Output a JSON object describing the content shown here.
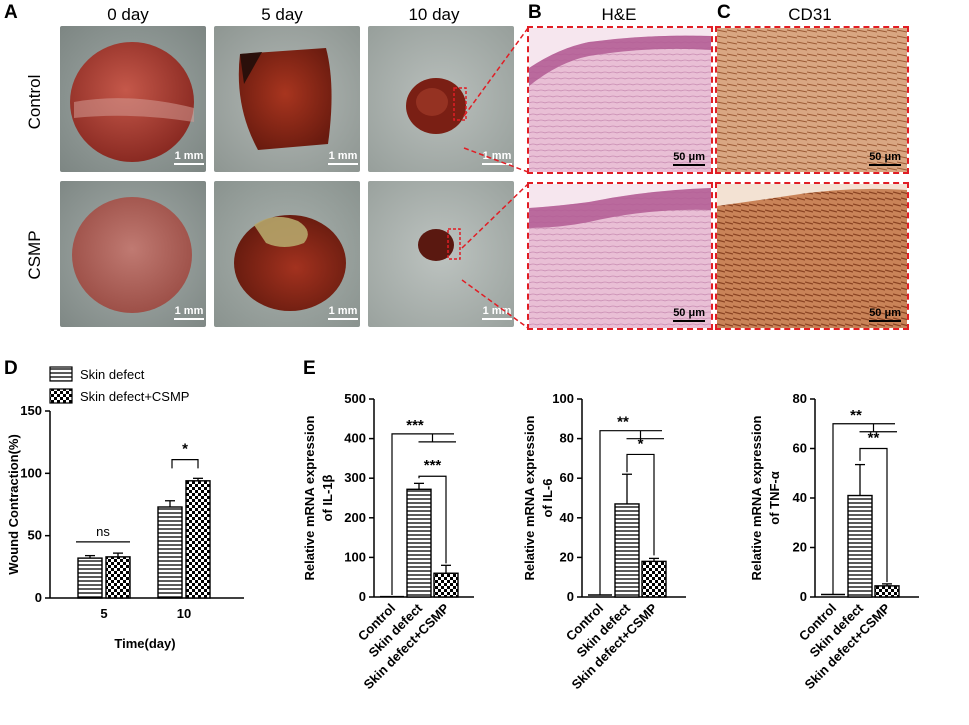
{
  "panels": {
    "a": "A",
    "b": "B",
    "c": "C",
    "d": "D",
    "e": "E"
  },
  "photo_grid": {
    "columns": [
      "0 day",
      "5 day",
      "10 day"
    ],
    "rows": [
      "Control",
      "CSMP"
    ],
    "scale_label": "1 mm"
  },
  "micro": {
    "he_title": "H&E",
    "cd31_title": "CD31",
    "scale_label": "50 μm"
  },
  "colors": {
    "skin": "#8f9894",
    "wound_dark": "#6b1d10",
    "wound_red": "#a8362a",
    "he_pink": "#e7b6cf",
    "cd31_brown": "#c98b62",
    "dash_red": "#e11d24"
  },
  "chart_data": [
    {
      "type": "bar",
      "panel": "D",
      "categories": [
        "5",
        "10"
      ],
      "series": [
        {
          "name": "Skin defect",
          "values": [
            32,
            73
          ],
          "errors": [
            2,
            5
          ],
          "pattern": "horizontal-lines"
        },
        {
          "name": "Skin defect+CSMP",
          "values": [
            33,
            94
          ],
          "errors": [
            3,
            2
          ],
          "pattern": "checker"
        }
      ],
      "ylabel": "Wound Contraction(%)",
      "xlabel": "Time(day)",
      "ylim": [
        0,
        150
      ],
      "yticks": [
        "0",
        "50",
        "100",
        "150"
      ],
      "significance": [
        {
          "category": "5",
          "label": "ns"
        },
        {
          "category": "10",
          "label": "*"
        }
      ],
      "legend_position": "top"
    },
    {
      "type": "bar",
      "panel": "E",
      "categories": [
        "Control",
        "Skin defect",
        "Skin defect+CSMP"
      ],
      "values": [
        1,
        272,
        60
      ],
      "errors": [
        0,
        15,
        20
      ],
      "ylabel_lines": [
        "Relative mRNA expression",
        "of IL-1β"
      ],
      "ylim": [
        0,
        500
      ],
      "yticks": [
        "0",
        "100",
        "200",
        "300",
        "400",
        "500"
      ],
      "significance": [
        {
          "from": "Control",
          "to": "Skin defect, Skin defect+CSMP",
          "label": "***"
        },
        {
          "from": "Skin defect",
          "to": "Skin defect+CSMP",
          "label": "***"
        }
      ]
    },
    {
      "type": "bar",
      "panel": "E",
      "categories": [
        "Control",
        "Skin defect",
        "Skin defect+CSMP"
      ],
      "values": [
        1,
        47,
        18
      ],
      "errors": [
        0,
        15,
        1.5
      ],
      "ylabel_lines": [
        "Relative mRNA expression",
        "of IL-6"
      ],
      "ylim": [
        0,
        100
      ],
      "yticks": [
        "0",
        "20",
        "40",
        "60",
        "80",
        "100"
      ],
      "significance": [
        {
          "from": "Control",
          "to": "Skin defect, Skin defect+CSMP",
          "label": "**"
        },
        {
          "from": "Skin defect",
          "to": "Skin defect+CSMP",
          "label": "*"
        }
      ]
    },
    {
      "type": "bar",
      "panel": "E",
      "categories": [
        "Control",
        "Skin defect",
        "Skin defect+CSMP"
      ],
      "values": [
        1,
        41,
        4.5
      ],
      "errors": [
        0,
        12.5,
        0.8
      ],
      "ylabel_lines": [
        "Relative mRNA expression",
        "of TNF-α"
      ],
      "ylim": [
        0,
        80
      ],
      "yticks": [
        "0",
        "20",
        "40",
        "60",
        "80"
      ],
      "significance": [
        {
          "from": "Control",
          "to": "Skin defect, Skin defect+CSMP",
          "label": "**"
        },
        {
          "from": "Skin defect",
          "to": "Skin defect+CSMP",
          "label": "**"
        }
      ]
    }
  ]
}
